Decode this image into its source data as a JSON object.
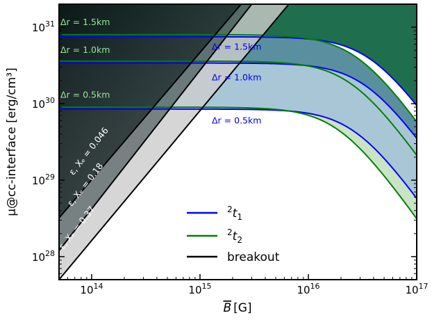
{
  "chart_data": {
    "type": "line",
    "xscale": "log",
    "yscale": "log",
    "xlim": [
      50000000000000.0,
      1e+17
    ],
    "ylim": [
      5e+27,
      2e+31
    ],
    "xlabel": "B̅ [G]",
    "ylabel": "μ@cc-interface [erg/cm³]",
    "x_ticks": [
      {
        "base": "10",
        "exp": "14",
        "value": 100000000000000.0
      },
      {
        "base": "10",
        "exp": "15",
        "value": 1000000000000000.0
      },
      {
        "base": "10",
        "exp": "16",
        "value": 1e+16
      },
      {
        "base": "10",
        "exp": "17",
        "value": 1e+17
      }
    ],
    "y_ticks": [
      {
        "base": "10",
        "exp": "28",
        "value": 1e+28
      },
      {
        "base": "10",
        "exp": "29",
        "value": 1e+29
      },
      {
        "base": "10",
        "exp": "30",
        "value": 1e+30
      },
      {
        "base": "10",
        "exp": "31",
        "value": 1e+31
      }
    ],
    "grid": false,
    "legend_position": "bottom-center",
    "series": [
      {
        "name": "²t₁",
        "color": "#0000ff",
        "group": "t1",
        "dr": "Δr = 0.5km",
        "plateau": 8.5e+29,
        "knee": 2.7e+16
      },
      {
        "name": "²t₁",
        "color": "#0000ff",
        "group": "t1",
        "dr": "Δr = 1.0km",
        "plateau": 3.4e+30,
        "knee": 3.4e+16
      },
      {
        "name": "²t₁",
        "color": "#0000ff",
        "group": "t1",
        "dr": "Δr = 1.5km",
        "plateau": 7.5e+30,
        "knee": 3.8e+16
      },
      {
        "name": "²t₂",
        "color": "#008000",
        "group": "t2",
        "dr": "Δr = 0.5km",
        "plateau": 9e+29,
        "knee": 1.9e+16
      },
      {
        "name": "²t₂",
        "color": "#008000",
        "group": "t2",
        "dr": "Δr = 1.0km",
        "plateau": 3.6e+30,
        "knee": 2.5e+16
      },
      {
        "name": "²t₂",
        "color": "#008000",
        "group": "t2",
        "dr": "Δr = 1.5km",
        "plateau": 8e+30,
        "knee": 2.8e+16
      }
    ],
    "breakout_lines": [
      {
        "label": "ε, Xₑ = 0.046",
        "x0": 50000000000000.0,
        "y0": 3.2e+28,
        "x1": 2400000000000000.0,
        "y1": 2e+31
      },
      {
        "label": "ε, Xₑ = 0.18",
        "x0": 50000000000000.0,
        "y0": 1.2e+28,
        "x1": 3000000000000000.0,
        "y1": 2e+31
      },
      {
        "label": "ε, Xₑ = 0.37",
        "x0": 50000000000000.0,
        "y0": 5e+27,
        "x1": 6600000000000000.0,
        "y1": 2e+31
      }
    ],
    "annotations_light_green": [
      "Δr = 1.5km",
      "Δr = 1.0km",
      "Δr = 0.5km"
    ],
    "annotations_blue": [
      "Δr = 1.5km",
      "Δr = 1.0km",
      "Δr = 0.5km"
    ],
    "legend": [
      {
        "label_base": "2",
        "label_main": "t",
        "label_sub": "1",
        "color": "#0000ff"
      },
      {
        "label_base": "2",
        "label_main": "t",
        "label_sub": "2",
        "color": "#008000"
      },
      {
        "label_text": "breakout",
        "color": "#000000"
      }
    ],
    "colors": {
      "t1": "#0000ff",
      "t2": "#008000",
      "breakout": "#000000",
      "fill_dark_green": "#1f6e4e",
      "fill_mid": "#5a8fa0",
      "fill_light_blue": "#a9c6d6",
      "fill_pale_green": "#c9e3c5",
      "left_region_dark": "#1a2a2a",
      "left_region_grey": "#6b6b6b",
      "left_region_light": "#cccccc"
    }
  }
}
